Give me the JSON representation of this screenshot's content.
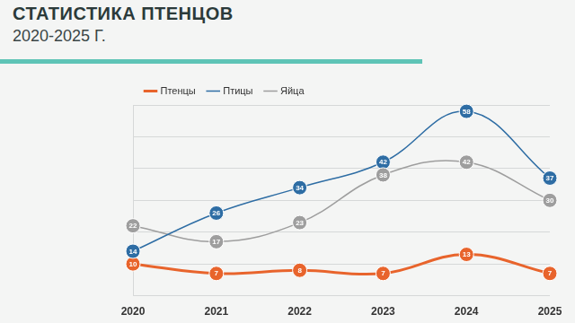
{
  "chart_data": {
    "type": "line",
    "title": "СТАТИСТИКА ПТЕНЦОВ",
    "subtitle": "2020-2025 Г.",
    "categories": [
      "2020",
      "2021",
      "2022",
      "2023",
      "2024",
      "2025"
    ],
    "series": [
      {
        "name": "Птенцы",
        "color": "#e8642c",
        "values": [
          10,
          7,
          8,
          7,
          13,
          7
        ]
      },
      {
        "name": "Птицы",
        "color": "#2e6da4",
        "values": [
          14,
          26,
          34,
          42,
          58,
          37
        ]
      },
      {
        "name": "Яйца",
        "color": "#9e9e9e",
        "values": [
          22,
          17,
          23,
          38,
          42,
          30
        ]
      }
    ],
    "ylim": [
      0,
      60
    ],
    "yticks": [
      0,
      10,
      20,
      30,
      40,
      50,
      60
    ],
    "grid": true,
    "legend": "top-left",
    "data_labels": true,
    "tick_labels": "x",
    "marker": "circle",
    "line_style": "solid"
  }
}
